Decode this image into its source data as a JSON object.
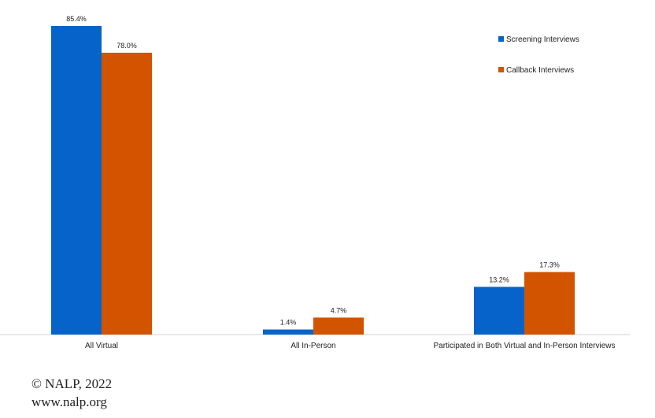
{
  "chart_data": {
    "type": "bar",
    "categories": [
      "All Virtual",
      "All In-Person",
      "Participated in Both Virtual and In-Person Interviews"
    ],
    "series": [
      {
        "name": "Screening Interviews",
        "values": [
          85.4,
          1.4,
          13.2
        ],
        "labels": [
          "85.4%",
          "1.4%",
          "13.2%"
        ],
        "color": "#0563c9"
      },
      {
        "name": "Callback Interviews",
        "values": [
          78.0,
          4.7,
          17.3
        ],
        "labels": [
          "78.0%",
          "4.7%",
          "17.3%"
        ],
        "color": "#d35400"
      }
    ],
    "ylim": [
      0,
      85.4
    ],
    "grid": false,
    "legend": "top-right"
  },
  "footer": {
    "copyright": "© NALP, 2022",
    "website": "www.nalp.org"
  }
}
